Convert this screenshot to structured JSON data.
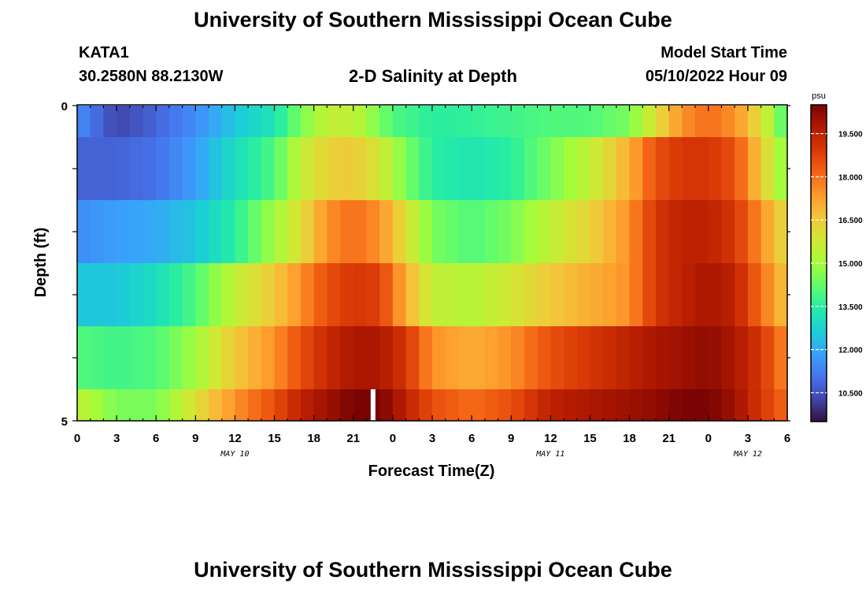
{
  "header": {
    "title": "University of Southern Mississippi Ocean Cube",
    "station": "KATA1",
    "coords": "30.2580N  88.2130W",
    "subtitle": "2-D Salinity at Depth",
    "start_label": "Model Start Time",
    "start_value": "05/10/2022 Hour 09"
  },
  "footer": {
    "title": "University of Southern Mississippi Ocean Cube"
  },
  "chart_data": {
    "type": "heatmap",
    "title": "2-D Salinity at Depth",
    "xlabel": "Forecast Time(Z)",
    "ylabel": "Depth (ft)",
    "x_tick_labels": [
      "0",
      "3",
      "6",
      "9",
      "12",
      "15",
      "18",
      "21",
      "0",
      "3",
      "6",
      "9",
      "12",
      "15",
      "18",
      "21",
      "0",
      "3",
      "6"
    ],
    "x_range_hours": [
      0,
      54
    ],
    "date_labels": [
      {
        "label": "MAY 10",
        "hour": 12
      },
      {
        "label": "MAY 11",
        "hour": 36
      },
      {
        "label": "MAY 12",
        "hour": 51
      }
    ],
    "y_tick_labels": [
      "0",
      "5"
    ],
    "y_range_ft": [
      0,
      5
    ],
    "missing_hour": 22.5,
    "colorbar": {
      "unit": "psu",
      "min": 9.5,
      "max": 20.5,
      "tick_labels": [
        "19.500",
        "18.000",
        "16.500",
        "15.000",
        "13.500",
        "12.000",
        "10.500"
      ],
      "tick_values": [
        19.5,
        18.0,
        16.5,
        15.0,
        13.5,
        12.0,
        10.5
      ],
      "colors": [
        "#30123b",
        "#4145ab",
        "#4675ed",
        "#39a2fc",
        "#1bcfd4",
        "#24eca6",
        "#61fc6c",
        "#a4fc3b",
        "#d1e834",
        "#f3c63a",
        "#fe9b2d",
        "#f36315",
        "#d93806",
        "#b11901",
        "#7a0403"
      ]
    },
    "depth_layers": [
      {
        "depth_ft": [
          0.0,
          0.5
        ],
        "knots": [
          [
            0,
            11.5
          ],
          [
            3,
            10.3
          ],
          [
            6,
            10.8
          ],
          [
            9,
            11.5
          ],
          [
            12,
            12.5
          ],
          [
            15,
            13.2
          ],
          [
            17,
            14.5
          ],
          [
            19,
            15.5
          ],
          [
            21,
            15.5
          ],
          [
            24,
            14.0
          ],
          [
            27,
            13.5
          ],
          [
            30,
            13.6
          ],
          [
            33,
            13.8
          ],
          [
            36,
            14.0
          ],
          [
            39,
            14.0
          ],
          [
            42,
            14.5
          ],
          [
            44,
            16.0
          ],
          [
            46,
            17.5
          ],
          [
            48,
            18.0
          ],
          [
            50,
            17.5
          ],
          [
            52,
            16.0
          ],
          [
            54,
            13.8
          ]
        ]
      },
      {
        "depth_ft": [
          0.5,
          1.5
        ],
        "knots": [
          [
            0,
            10.8
          ],
          [
            3,
            10.8
          ],
          [
            6,
            11.0
          ],
          [
            9,
            11.8
          ],
          [
            12,
            13.0
          ],
          [
            15,
            14.0
          ],
          [
            17,
            15.5
          ],
          [
            19,
            16.3
          ],
          [
            21,
            16.5
          ],
          [
            23,
            15.8
          ],
          [
            25,
            14.5
          ],
          [
            27,
            13.5
          ],
          [
            30,
            13.2
          ],
          [
            33,
            13.5
          ],
          [
            36,
            14.5
          ],
          [
            39,
            15.5
          ],
          [
            42,
            17.0
          ],
          [
            44,
            18.5
          ],
          [
            46,
            19.0
          ],
          [
            48,
            19.0
          ],
          [
            50,
            18.5
          ],
          [
            52,
            16.5
          ],
          [
            54,
            14.5
          ]
        ]
      },
      {
        "depth_ft": [
          1.5,
          2.5
        ],
        "knots": [
          [
            0,
            11.5
          ],
          [
            3,
            11.8
          ],
          [
            6,
            12.0
          ],
          [
            9,
            12.5
          ],
          [
            12,
            13.5
          ],
          [
            15,
            15.0
          ],
          [
            17,
            16.0
          ],
          [
            19,
            17.5
          ],
          [
            21,
            18.0
          ],
          [
            23,
            17.5
          ],
          [
            25,
            16.0
          ],
          [
            27,
            14.5
          ],
          [
            30,
            14.0
          ],
          [
            33,
            14.5
          ],
          [
            36,
            15.5
          ],
          [
            39,
            16.3
          ],
          [
            42,
            17.5
          ],
          [
            44,
            19.0
          ],
          [
            46,
            19.5
          ],
          [
            48,
            19.5
          ],
          [
            50,
            19.0
          ],
          [
            52,
            17.5
          ],
          [
            54,
            16.0
          ]
        ]
      },
      {
        "depth_ft": [
          2.5,
          3.5
        ],
        "knots": [
          [
            0,
            12.5
          ],
          [
            3,
            12.5
          ],
          [
            6,
            13.0
          ],
          [
            9,
            14.0
          ],
          [
            12,
            15.5
          ],
          [
            15,
            16.5
          ],
          [
            17,
            17.5
          ],
          [
            19,
            18.5
          ],
          [
            21,
            19.0
          ],
          [
            23,
            18.8
          ],
          [
            25,
            17.0
          ],
          [
            27,
            15.5
          ],
          [
            30,
            15.3
          ],
          [
            33,
            15.8
          ],
          [
            36,
            16.5
          ],
          [
            39,
            17.0
          ],
          [
            42,
            17.5
          ],
          [
            44,
            19.0
          ],
          [
            46,
            19.5
          ],
          [
            48,
            19.8
          ],
          [
            50,
            19.5
          ],
          [
            52,
            18.0
          ],
          [
            54,
            16.5
          ]
        ]
      },
      {
        "depth_ft": [
          3.5,
          4.5
        ],
        "knots": [
          [
            0,
            14.0
          ],
          [
            3,
            13.8
          ],
          [
            6,
            14.0
          ],
          [
            9,
            15.0
          ],
          [
            12,
            16.5
          ],
          [
            15,
            17.5
          ],
          [
            17,
            18.5
          ],
          [
            19,
            19.3
          ],
          [
            21,
            19.8
          ],
          [
            23,
            19.8
          ],
          [
            25,
            19.0
          ],
          [
            27,
            17.5
          ],
          [
            30,
            17.0
          ],
          [
            33,
            17.5
          ],
          [
            36,
            18.5
          ],
          [
            39,
            19.0
          ],
          [
            42,
            19.5
          ],
          [
            44,
            19.8
          ],
          [
            46,
            20.0
          ],
          [
            48,
            20.2
          ],
          [
            50,
            19.8
          ],
          [
            52,
            19.0
          ],
          [
            54,
            17.5
          ]
        ]
      },
      {
        "depth_ft": [
          4.5,
          5.0
        ],
        "knots": [
          [
            0,
            15.5
          ],
          [
            3,
            14.5
          ],
          [
            6,
            14.5
          ],
          [
            9,
            16.0
          ],
          [
            12,
            17.5
          ],
          [
            15,
            18.5
          ],
          [
            17,
            19.5
          ],
          [
            19,
            20.0
          ],
          [
            21,
            20.5
          ],
          [
            23,
            20.5
          ],
          [
            25,
            19.5
          ],
          [
            27,
            18.5
          ],
          [
            30,
            18.0
          ],
          [
            33,
            18.5
          ],
          [
            36,
            19.5
          ],
          [
            39,
            19.8
          ],
          [
            42,
            20.0
          ],
          [
            44,
            20.2
          ],
          [
            46,
            20.5
          ],
          [
            48,
            20.5
          ],
          [
            50,
            20.0
          ],
          [
            52,
            19.0
          ],
          [
            54,
            18.0
          ]
        ]
      }
    ]
  }
}
